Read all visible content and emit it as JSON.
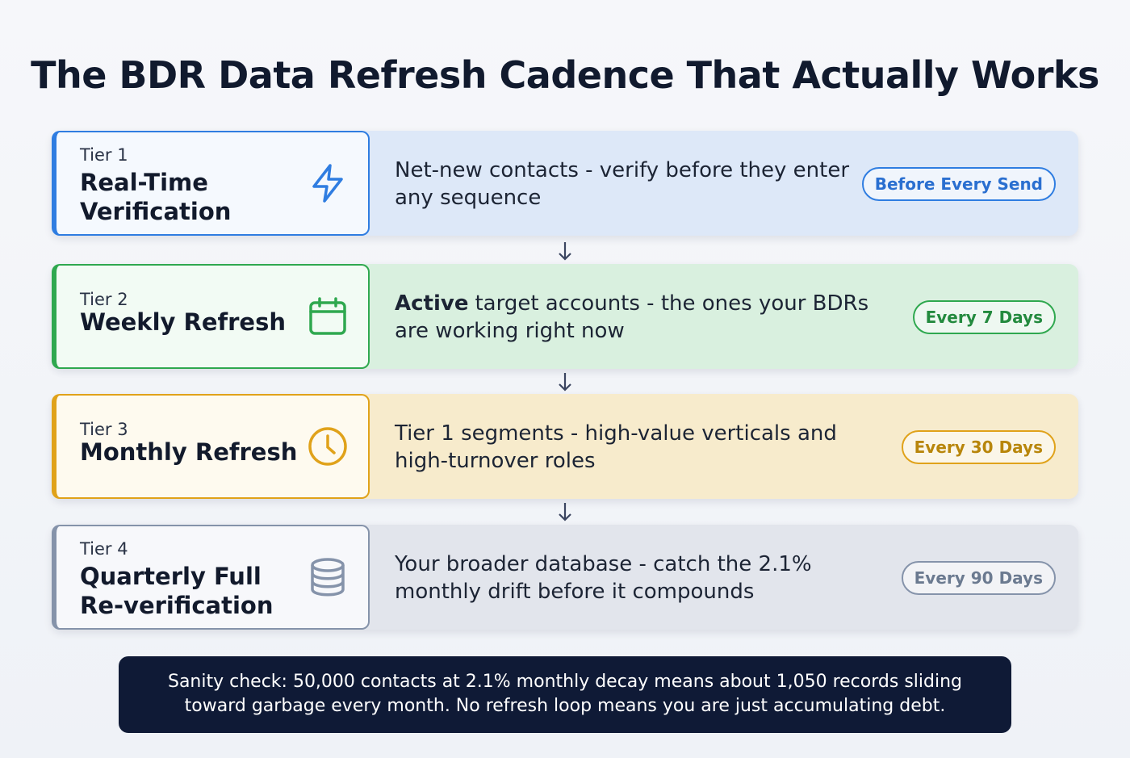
{
  "header": {
    "title": "The BDR Data Refresh Cadence That Actually Works"
  },
  "tiers": [
    {
      "label": "Tier 1",
      "name": "Real-Time Verification",
      "description": "Net-new contacts - verify before they enter any sequence",
      "badge": "Before Every Send"
    },
    {
      "label": "Tier 2",
      "name": "Weekly Refresh",
      "description_strong": "Active",
      "description": "target accounts - the ones your BDRs are working right now",
      "badge": "Every 7 Days"
    },
    {
      "label": "Tier 3",
      "name": "Monthly Refresh",
      "description": "Tier 1 segments - high-value verticals and high-turnover roles",
      "badge": "Every 30 Days"
    },
    {
      "label": "Tier 4",
      "name": "Quarterly Full Re-verification",
      "description": "Your broader database - catch the 2.1% monthly drift before it compounds",
      "badge": "Every 90 Days"
    }
  ],
  "footer": {
    "note": "Sanity check: 50,000 contacts at 2.1% monthly decay means about 1,050 records sliding toward garbage every month. No refresh loop means you are just accumulating debt."
  }
}
